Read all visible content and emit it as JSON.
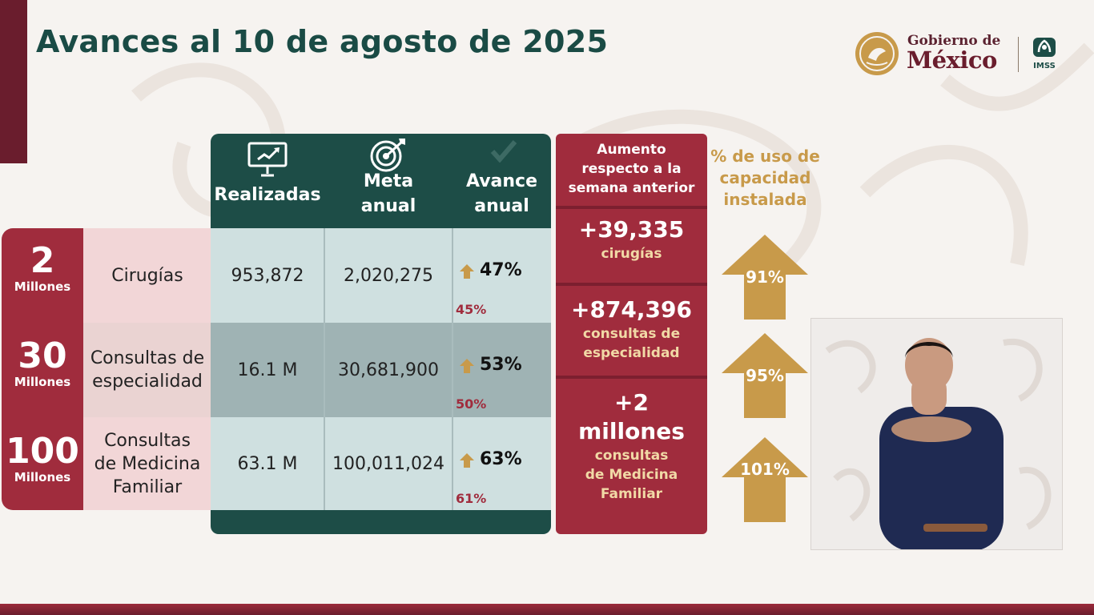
{
  "title": "Avances al 10 de agosto de 2025",
  "logos": {
    "gobierno_top": "Gobierno de",
    "gobierno_big": "México",
    "imss": "IMSS"
  },
  "table": {
    "headers": {
      "realizadas": "Realizadas",
      "meta": [
        "Meta",
        "anual"
      ],
      "avance": [
        "Avance",
        "anual"
      ]
    },
    "rows": [
      {
        "num": "2",
        "unit": "Millones",
        "label": [
          "Cirugías"
        ],
        "realizadas": "953,872",
        "meta": "2,020,275",
        "avance": "47%",
        "prev": "45%"
      },
      {
        "num": "30",
        "unit": "Millones",
        "label": [
          "Consultas de",
          "especialidad"
        ],
        "realizadas": "16.1 M",
        "meta": "30,681,900",
        "avance": "53%",
        "prev": "50%"
      },
      {
        "num": "100",
        "unit": "Millones",
        "label": [
          "Consultas",
          "de Medicina",
          "Familiar"
        ],
        "realizadas": "63.1 M",
        "meta": "100,011,024",
        "avance": "63%",
        "prev": "61%"
      }
    ]
  },
  "increment": {
    "header": [
      "Aumento",
      "respecto a la",
      "semana anterior"
    ],
    "items": [
      {
        "value": "+39,335",
        "desc": [
          "cirugías"
        ]
      },
      {
        "value": "+874,396",
        "desc": [
          "consultas de",
          "especialidad"
        ]
      },
      {
        "value": [
          "+2",
          "millones"
        ],
        "desc": [
          "consultas",
          "de Medicina",
          "Familiar"
        ]
      }
    ]
  },
  "capacity": {
    "header": [
      "% de uso de",
      "capacidad",
      "instalada"
    ],
    "values": [
      "91%",
      "95%",
      "101%"
    ]
  },
  "colors": {
    "green": "#1d4d47",
    "red": "#a02c3d",
    "gold": "#c89a4a",
    "pink": "#f2d6d7",
    "cell_light": "#cfe0e0",
    "cell_dark": "#9fb3b4"
  }
}
